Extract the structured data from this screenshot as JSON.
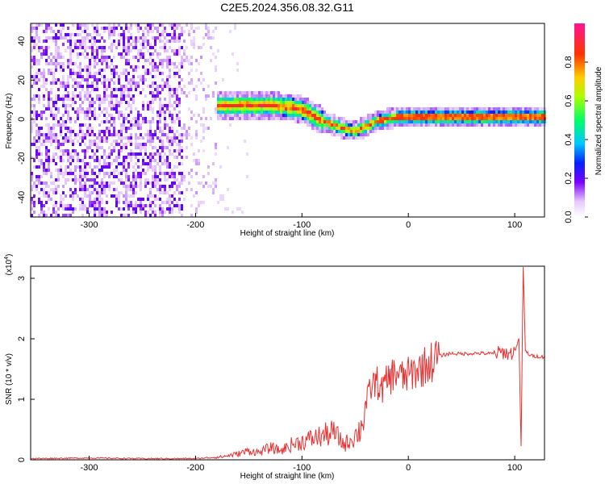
{
  "title": "C2E5.2024.356.08.32.G11",
  "chart_data": [
    {
      "type": "heatmap",
      "xlabel": "Height of straight line (km)",
      "ylabel": "Frequency (Hz)",
      "xlim": [
        -355,
        128
      ],
      "ylim": [
        -50,
        49
      ],
      "xticks": [
        -300,
        -200,
        -100,
        0,
        100
      ],
      "yticks": [
        -40,
        -20,
        0,
        20,
        40
      ],
      "colorbar": {
        "label": "Normalized spectral amplitude",
        "range": [
          0,
          1
        ],
        "ticks": [
          0.0,
          0.2,
          0.4,
          0.6,
          0.8
        ]
      },
      "ridge": {
        "x": [
          -210,
          -190,
          -170,
          -150,
          -130,
          -110,
          -100,
          -90,
          -80,
          -70,
          -60,
          -50,
          -40,
          -30,
          -20,
          -10,
          0,
          20,
          40,
          60,
          80,
          100,
          128
        ],
        "y": [
          6,
          7,
          7,
          7,
          7,
          6,
          5,
          2,
          -1,
          -3,
          -5,
          -6,
          -4,
          -1,
          0,
          1,
          1,
          1,
          1,
          1,
          1,
          1,
          1
        ]
      }
    },
    {
      "type": "line",
      "xlabel": "Height of straight line (km)",
      "ylabel": "SNR (10 * v/v)",
      "y_multiplier": "(x10^4)",
      "xlim": [
        -355,
        128
      ],
      "ylim": [
        0,
        3.2
      ],
      "xticks": [
        -300,
        -200,
        -100,
        0,
        100
      ],
      "yticks": [
        0,
        1,
        2,
        3
      ],
      "series": [
        {
          "color": "#e83030",
          "x": [
            -355,
            -300,
            -250,
            -200,
            -175,
            -160,
            -150,
            -140,
            -130,
            -120,
            -110,
            -100,
            -90,
            -80,
            -70,
            -60,
            -50,
            -45,
            -40,
            -35,
            -30,
            -25,
            -20,
            -15,
            -10,
            -5,
            0,
            10,
            20,
            30,
            40,
            50,
            60,
            70,
            80,
            90,
            95,
            100,
            104,
            106,
            108,
            110,
            115,
            128
          ],
          "y": [
            0.02,
            0.03,
            0.02,
            0.02,
            0.05,
            0.1,
            0.15,
            0.12,
            0.2,
            0.15,
            0.25,
            0.3,
            0.35,
            0.4,
            0.45,
            0.25,
            0.4,
            0.5,
            0.9,
            1.2,
            1.3,
            1.15,
            1.3,
            1.4,
            1.45,
            1.35,
            1.4,
            1.5,
            1.6,
            1.72,
            1.76,
            1.75,
            1.76,
            1.76,
            1.75,
            1.78,
            1.74,
            1.8,
            2.0,
            0.2,
            3.2,
            1.8,
            1.72,
            1.7
          ]
        }
      ]
    }
  ]
}
